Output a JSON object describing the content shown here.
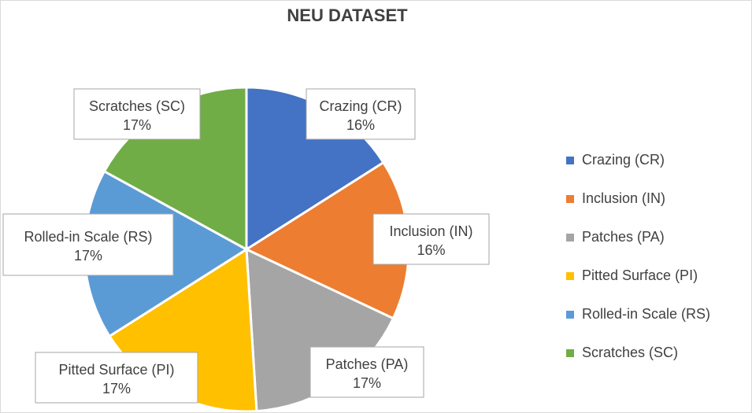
{
  "chart_data": {
    "type": "pie",
    "title": "NEU DATASET",
    "categories": [
      "Crazing (CR)",
      "Inclusion (IN)",
      "Patches (PA)",
      "Pitted Surface (PI)",
      "Rolled-in Scale (RS)",
      "Scratches (SC)"
    ],
    "values": [
      16,
      16,
      17,
      17,
      17,
      17
    ],
    "data_labels": [
      "16%",
      "16%",
      "17%",
      "17%",
      "17%",
      "17%"
    ],
    "colors": [
      "#4472C4",
      "#ED7D31",
      "#A5A5A5",
      "#FFC000",
      "#5B9BD5",
      "#70AD47"
    ],
    "legend_position": "right"
  }
}
